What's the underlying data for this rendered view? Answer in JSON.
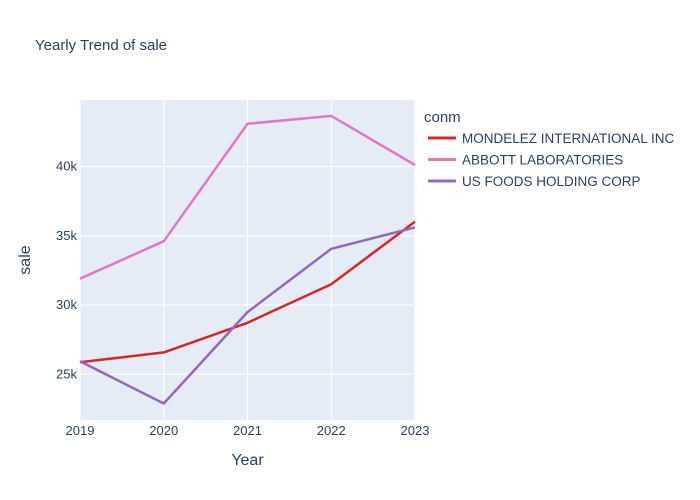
{
  "chart_data": {
    "type": "line",
    "title": "Yearly Trend of sale",
    "xlabel": "Year",
    "ylabel": "sale",
    "legend_title": "conm",
    "legend_position": "right",
    "grid": true,
    "x": [
      2019,
      2020,
      2021,
      2022,
      2023
    ],
    "x_ticks": [
      "2019",
      "2020",
      "2021",
      "2022",
      "2023"
    ],
    "xlim": [
      2019,
      2023
    ],
    "ylim": [
      21700,
      44800
    ],
    "y_ticks": [
      25000,
      30000,
      35000,
      40000
    ],
    "y_tick_labels": [
      "25k",
      "30k",
      "35k",
      "40k"
    ],
    "series": [
      {
        "name": "MONDELEZ INTERNATIONAL INC",
        "color": "#d62728",
        "values": [
          25870,
          26580,
          28720,
          31500,
          36020
        ]
      },
      {
        "name": "ABBOTT LABORATORIES",
        "color": "#e377c2",
        "values": [
          31900,
          34610,
          43080,
          43650,
          40110
        ]
      },
      {
        "name": "US FOODS HOLDING CORP",
        "color": "#9467bd",
        "values": [
          25940,
          22890,
          29490,
          34060,
          35600
        ]
      }
    ],
    "plot_bg": "#e5ecf6",
    "grid_color": "#ffffff",
    "text_color": "#2a3f5f"
  }
}
